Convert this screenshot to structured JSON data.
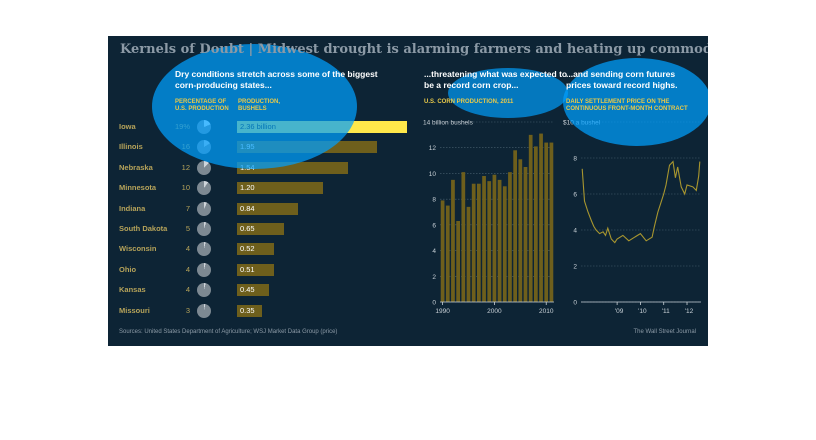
{
  "title_left": "Kernels of Doubt",
  "title_sep": "|",
  "title_right": "Midwest drought is alarming farmers and heating up commodities markets",
  "left": {
    "headline": "Dry conditions stretch across some of the biggest corn-producing states...",
    "col1_header": "PERCENTAGE OF U.S. PRODUCTION",
    "col2_header": "PRODUCTION, BUSHELS"
  },
  "middle": {
    "headline": "...threatening what was expected to be a record corn crop...",
    "subhead": "U.S. CORN PRODUCTION, 2011",
    "unit": "14 billion bushels"
  },
  "right": {
    "headline": "...and sending corn futures prices toward record highs.",
    "subhead": "DAILY SETTLEMENT PRICE ON THE CONTINUOUS FRONT-MONTH CONTRACT",
    "unit": "$10 a bushel"
  },
  "footer": {
    "source": "Sources: United States Department of Agriculture; WSJ Market Data Group (price)",
    "credit": "The Wall Street Journal"
  },
  "colors": {
    "panel_bg": "#0d2435",
    "bar_gold": "#6e5f1c",
    "highlight_bar": "#ffe84a",
    "accent_yellow": "#e8c94a",
    "pie_base": "#7d8992",
    "pie_slice": "#cfd5da",
    "line_gold": "#a8962f"
  },
  "chart_data": [
    {
      "type": "bar",
      "title": "Dry conditions stretch across some of the biggest corn-producing states...",
      "categories": [
        "Iowa",
        "Illinois",
        "Nebraska",
        "Minnesota",
        "Indiana",
        "South Dakota",
        "Wisconsin",
        "Ohio",
        "Kansas",
        "Missouri"
      ],
      "series": [
        {
          "name": "PERCENTAGE OF U.S. PRODUCTION",
          "values": [
            19,
            16,
            12,
            10,
            7,
            5,
            4,
            4,
            4,
            3
          ],
          "labels": [
            "19%",
            "16",
            "12",
            "10",
            "7",
            "5",
            "4",
            "4",
            "4",
            "3"
          ]
        },
        {
          "name": "PRODUCTION, BUSHELS",
          "values": [
            2.36,
            1.95,
            1.54,
            1.2,
            0.84,
            0.65,
            0.52,
            0.51,
            0.45,
            0.35
          ],
          "labels": [
            "2.36 billion",
            "1.95",
            "1.54",
            "1.20",
            "0.84",
            "0.65",
            "0.52",
            "0.51",
            "0.45",
            "0.35"
          ]
        }
      ]
    },
    {
      "type": "bar",
      "title": "...threatening what was expected to be a record corn crop...",
      "x": [
        1990,
        1991,
        1992,
        1993,
        1994,
        1995,
        1996,
        1997,
        1998,
        1999,
        2000,
        2001,
        2002,
        2003,
        2004,
        2005,
        2006,
        2007,
        2008,
        2009,
        2010,
        2011
      ],
      "values": [
        7.9,
        7.5,
        9.5,
        6.3,
        10.1,
        7.4,
        9.2,
        9.2,
        9.8,
        9.4,
        9.9,
        9.5,
        9.0,
        10.1,
        11.8,
        11.1,
        10.5,
        13.0,
        12.1,
        13.1,
        12.4,
        12.4
      ],
      "xticks": [
        "1990",
        "2000",
        "2010"
      ],
      "yticks": [
        "0",
        "2",
        "4",
        "6",
        "8",
        "10",
        "12",
        "14 billion bushels"
      ],
      "ylim": [
        0,
        14
      ]
    },
    {
      "type": "line",
      "title": "...and sending corn futures prices toward record highs.",
      "x": [
        2007.5,
        2007.6,
        2007.75,
        2007.9,
        2008.0,
        2008.1,
        2008.25,
        2008.4,
        2008.5,
        2008.6,
        2008.75,
        2008.9,
        2009.0,
        2009.25,
        2009.5,
        2009.75,
        2010.0,
        2010.25,
        2010.5,
        2010.6,
        2010.75,
        2010.9,
        2011.0,
        2011.1,
        2011.25,
        2011.4,
        2011.5,
        2011.6,
        2011.75,
        2011.9,
        2012.0,
        2012.25,
        2012.4,
        2012.5,
        2012.55
      ],
      "values": [
        7.4,
        5.6,
        5.0,
        4.5,
        4.2,
        4.0,
        3.8,
        3.9,
        3.7,
        4.1,
        3.5,
        3.3,
        3.5,
        3.7,
        3.4,
        3.6,
        3.8,
        3.4,
        3.6,
        4.2,
        5.0,
        5.6,
        6.0,
        6.5,
        7.6,
        7.8,
        6.9,
        7.5,
        6.4,
        6.0,
        6.5,
        6.4,
        6.2,
        7.0,
        7.8
      ],
      "xticks": [
        "'09",
        "'10",
        "'11",
        "'12"
      ],
      "yticks": [
        "0",
        "2",
        "4",
        "6",
        "8",
        "$10 a bushel"
      ],
      "ylim": [
        0,
        10
      ]
    }
  ]
}
